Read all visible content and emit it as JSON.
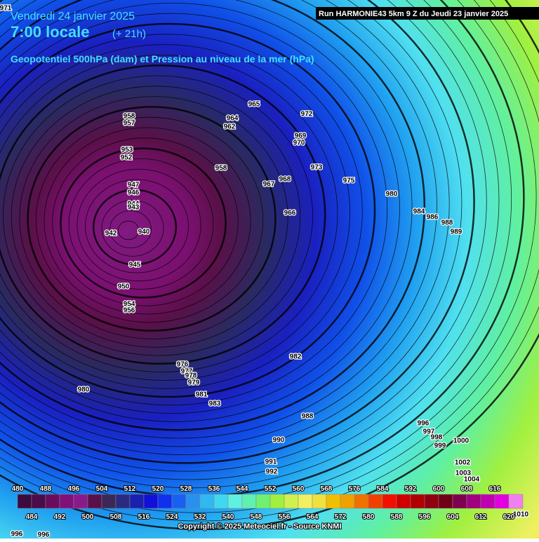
{
  "header": {
    "date": "Vendredi 24 janvier 2025",
    "time": "7:00 locale",
    "offset": "(+ 21h)",
    "subtitle": "Geopotentiel 500hPa (dam) et Pression au niveau de la mer (hPa)"
  },
  "run_label": "Run HARMONIE43 5km 9 Z du Jeudi 23 janvier 2025",
  "legend": {
    "levels": [
      480,
      484,
      488,
      492,
      496,
      500,
      504,
      508,
      512,
      516,
      520,
      524,
      528,
      532,
      536,
      540,
      544,
      548,
      552,
      556,
      560,
      564,
      568,
      572,
      576,
      580,
      584,
      588,
      592,
      596,
      600,
      604,
      608,
      612,
      616,
      620
    ],
    "colors": [
      "#3c0a3c",
      "#4a0c4a",
      "#6a0c5e",
      "#80107a",
      "#8a1a8a",
      "#5a1048",
      "#3a2858",
      "#2a2a80",
      "#1a20b0",
      "#1010d8",
      "#1030f0",
      "#1860f0",
      "#2a90f0",
      "#30b8f0",
      "#40d8f0",
      "#60f0e0",
      "#60f0b0",
      "#70f070",
      "#a0f040",
      "#d0f050",
      "#f0f060",
      "#f0e040",
      "#f0c000",
      "#f0a000",
      "#f07000",
      "#f04000",
      "#f01000",
      "#d00000",
      "#b00000",
      "#900010",
      "#700018",
      "#800050",
      "#a00080",
      "#c000b0",
      "#e000e0",
      "#f080f0"
    ]
  },
  "isobar_labels": [
    971,
    958,
    957,
    953,
    952,
    947,
    946,
    944,
    943,
    942,
    940,
    945,
    950,
    954,
    956,
    964,
    962,
    965,
    972,
    969,
    970,
    966,
    967,
    968,
    973,
    975,
    980,
    984,
    986,
    988,
    989,
    958,
    976,
    977,
    978,
    979,
    981,
    983,
    982,
    980,
    988,
    990,
    991,
    992,
    996,
    997,
    998,
    999,
    1000,
    1002,
    1003,
    1004,
    1010,
    996,
    996
  ],
  "copyright": "Copyright © 2025 Meteociel.fr - Source KNMI"
}
